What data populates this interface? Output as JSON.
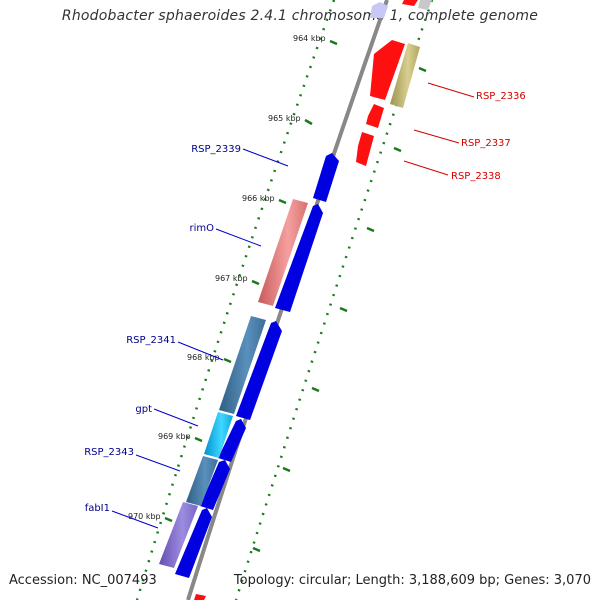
{
  "title": "Rhodobacter sphaeroides 2.4.1 chromosome 1, complete genome",
  "footer": {
    "accession": "Accession: NC_007493",
    "topology": "Topology: circular; Length: 3,188,609 bp; Genes: 3,070"
  },
  "kbp_ticks": [
    "964 kbp",
    "965 kbp",
    "966 kbp",
    "967 kbp",
    "968 kbp",
    "969 kbp",
    "970 kbp"
  ],
  "gene_labels": {
    "left": [
      "RSP_2339",
      "rimO",
      "RSP_2341",
      "gpt",
      "RSP_2343",
      "fabI1"
    ],
    "right": [
      "RSP_2336",
      "RSP_2337",
      "RSP_2338"
    ]
  },
  "colors": {
    "forward_strand": "#0000e0",
    "reverse_strand": "#ff0000",
    "backbone": "#888888",
    "tick_marks": "#1a7a1a",
    "label_blue": "#00008b",
    "label_red": "#d40000"
  }
}
